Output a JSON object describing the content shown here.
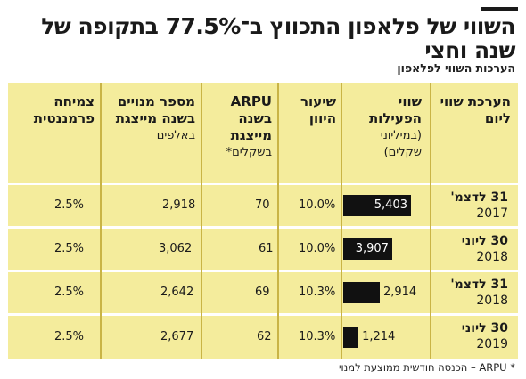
{
  "title": "השווי של פלאפון התכווץ ב־77.5% בתקופה של שנה וחצי",
  "subtitle": "הערכות השווי לפלאפון",
  "columns": {
    "date": "הערכת שווי ליום",
    "value_title": "שווי הפעילות",
    "value_unit": "(במיליוני שקלים)",
    "discount": "שיעור היוון",
    "arpu_1": "ARPU",
    "arpu_2": "בשנה מייצגת",
    "arpu_3": "בשקלים*",
    "subs_1": "מספר מנויים",
    "subs_2": "בשנה מייצגת",
    "subs_3": "באלפים",
    "growth": "צמיחה פרמננטית"
  },
  "rows": [
    {
      "date_line": "31 לדצמ'",
      "year": "2017",
      "value": "5,403",
      "discount": "10.0%",
      "arpu": "70",
      "subs": "2,918",
      "growth": "2.5%"
    },
    {
      "date_line": "30 ליוני",
      "year": "2018",
      "value": "3,907",
      "discount": "10.0%",
      "arpu": "61",
      "subs": "3,062",
      "growth": "2.5%"
    },
    {
      "date_line": "31 לדצמ'",
      "year": "2018",
      "value": "2,914",
      "discount": "10.3%",
      "arpu": "69",
      "subs": "2,642",
      "growth": "2.5%"
    },
    {
      "date_line": "30 ליוני",
      "year": "2019",
      "value": "1,214",
      "discount": "10.3%",
      "arpu": "62",
      "subs": "2,677",
      "growth": "2.5%"
    }
  ],
  "footnote": "* ARPU – הכנסה חודשית ממוצעת למנוי",
  "colors": {
    "band": "#f4ec9c",
    "bar": "#111111",
    "divider": "#c9b446"
  },
  "chart_data": {
    "type": "bar",
    "orientation": "horizontal",
    "categories": [
      "31 לדצמ' 2017",
      "30 ליוני 2018",
      "31 לדצמ' 2018",
      "30 ליוני 2019"
    ],
    "values": [
      5403,
      3907,
      2914,
      1214
    ],
    "title": "שווי הפעילות",
    "xlim": [
      0,
      5403
    ]
  }
}
